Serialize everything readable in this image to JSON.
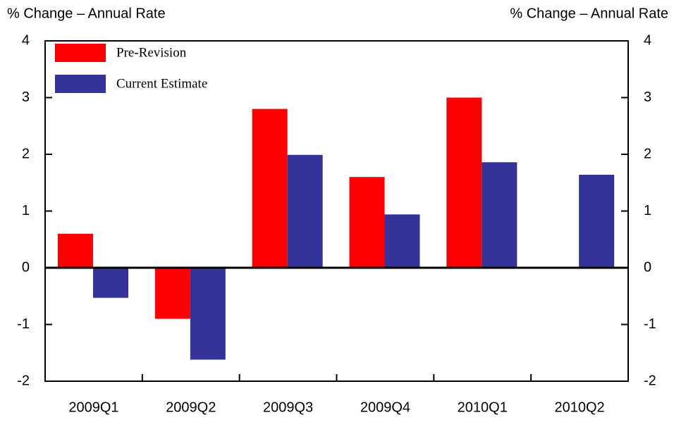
{
  "chart_data": {
    "type": "bar",
    "ylabel": "% Change – Annual Rate",
    "y2label": "% Change – Annual Rate",
    "categories": [
      "2009Q1",
      "2009Q2",
      "2009Q3",
      "2009Q4",
      "2010Q1",
      "2010Q2"
    ],
    "series": [
      {
        "name": "Pre-Revision",
        "color": "#ff0000",
        "values": [
          0.6,
          -0.9,
          2.8,
          1.6,
          3.0,
          null
        ]
      },
      {
        "name": "Current Estimate",
        "color": "#333399",
        "values": [
          -0.53,
          -1.62,
          1.99,
          0.94,
          1.86,
          1.64
        ]
      }
    ],
    "ylim": [
      -2,
      4
    ],
    "yticks": [
      -2,
      -1,
      0,
      1,
      2,
      3,
      4
    ],
    "y2lim": [
      -2,
      4
    ],
    "y2ticks": [
      -2,
      -1,
      0,
      1,
      2,
      3,
      4
    ],
    "grid": false,
    "legend": "top-left"
  }
}
